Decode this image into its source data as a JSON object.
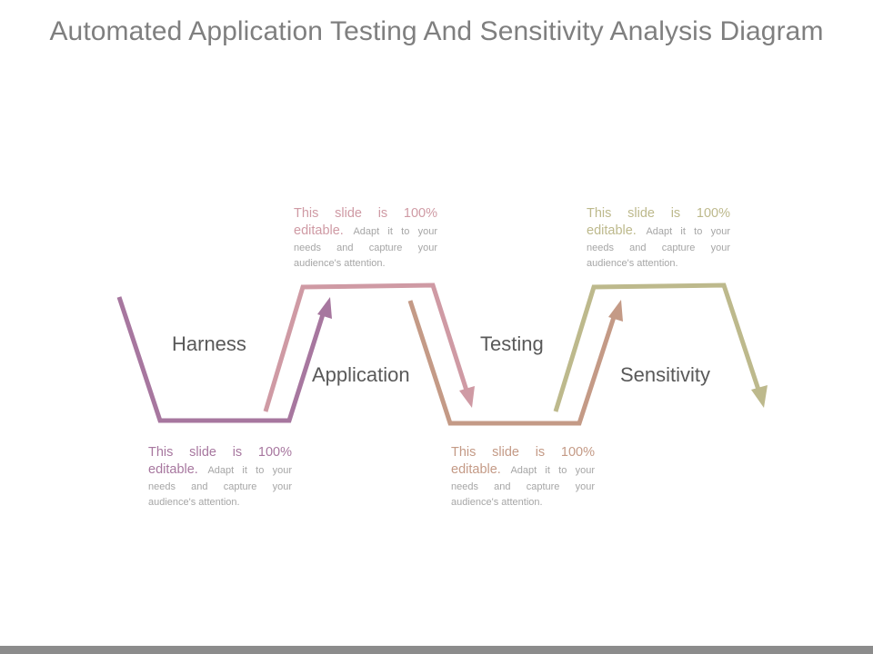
{
  "title": "Automated Application Testing And Sensitivity Analysis Diagram",
  "colors": {
    "harness": "#a7779f",
    "application": "#cf9aa4",
    "testing": "#c49a86",
    "sensitivity": "#bdb98c",
    "title_text": "#7f7f7f",
    "label_text": "#595959",
    "note_body": "#a6a6a6",
    "bottom_bar": "#8c8c8c"
  },
  "steps": [
    {
      "label": "Harness"
    },
    {
      "label": "Application"
    },
    {
      "label": "Testing"
    },
    {
      "label": "Sensitivity"
    }
  ],
  "notes": [
    {
      "lead": "This slide is 100% editable.",
      "body": "Adapt it to your needs and capture your audience's attention."
    },
    {
      "lead": "This slide is 100% editable.",
      "body": "Adapt it to your needs and capture your audience's attention."
    },
    {
      "lead": "This slide is 100% editable.",
      "body": "Adapt it to your needs and capture your audience's attention."
    },
    {
      "lead": "This slide is 100% editable.",
      "body": "Adapt it to your needs and capture your audience's attention."
    }
  ]
}
